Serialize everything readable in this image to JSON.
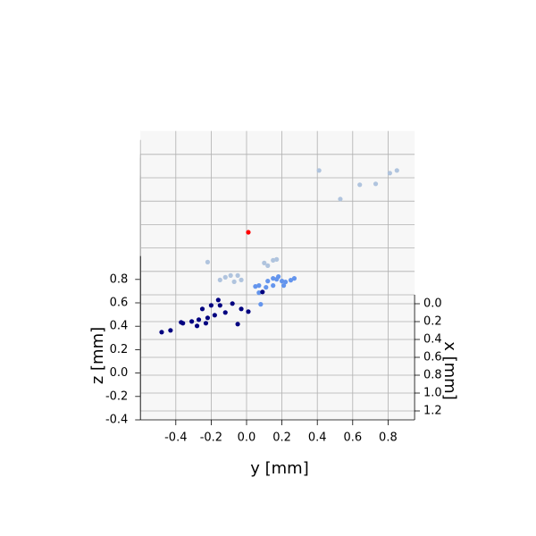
{
  "chart_data": {
    "type": "scatter3d",
    "x_label": "x [mm]",
    "y_label": "y [mm]",
    "z_label": "z [mm]",
    "xlim": [
      -0.1,
      1.3
    ],
    "ylim": [
      -0.6,
      0.95
    ],
    "zlim": [
      -0.4,
      1.0
    ],
    "xticks": [
      {
        "value": 0,
        "label": "0.0"
      },
      0.2,
      0.4,
      0.6,
      0.8,
      {
        "value": 1,
        "label": "1.0"
      },
      1.2
    ],
    "yticks": [
      -0.4,
      -0.2,
      {
        "value": 0,
        "label": "0.0"
      },
      0.2,
      0.4,
      0.6,
      0.8
    ],
    "zticks": [
      -0.4,
      -0.2,
      {
        "value": 0,
        "label": "0.0"
      },
      0.2,
      0.4,
      0.6,
      0.8
    ],
    "grid": true,
    "series": [
      {
        "color": "#b0c4de",
        "x": [
          0.08,
          0.4,
          0.24,
          0.23,
          0.11,
          0.08,
          0.32,
          0.52,
          0.47,
          0.54,
          0.52,
          0.33,
          0.36,
          0.3,
          0.29,
          0.49,
          0.47
        ],
        "y": [
          0.41,
          0.53,
          0.64,
          0.73,
          0.81,
          0.85,
          -0.22,
          -0.15,
          -0.09,
          -0.07,
          -0.03,
          0.1,
          0.12,
          0.15,
          0.17,
          -0.12,
          -0.05
        ],
        "z": [
          0.8,
          0.8,
          0.8,
          0.8,
          0.8,
          0.8,
          0.2,
          0.2,
          0.2,
          0.2,
          0.2,
          0.2,
          0.2,
          0.2,
          0.2,
          0.2,
          0.2
        ]
      },
      {
        "color": "#6495ed",
        "x": [
          0.33,
          0.32,
          0.27,
          0.24,
          0.25,
          0.27,
          0.28,
          0.26,
          0.24,
          0.32,
          0.32,
          0.22,
          0.53,
          0.4,
          0.34
        ],
        "y": [
          0.05,
          0.07,
          0.12,
          0.15,
          0.17,
          0.2,
          0.22,
          0.25,
          0.27,
          0.21,
          0.15,
          0.18,
          0.08,
          0.07,
          0.11
        ],
        "z": [
          0,
          0,
          0,
          0,
          0,
          0,
          0,
          0,
          0,
          0,
          0,
          0,
          0,
          0,
          0
        ]
      },
      {
        "color": "#000080",
        "x": [
          0.58,
          0.56,
          0.47,
          0.48,
          0.46,
          0.51,
          0.44,
          0.48,
          0.42,
          0.32,
          0.39,
          0.22,
          0.28,
          0.36,
          0.26,
          0.49,
          0.32,
          0.35,
          0.13,
          0.28
        ],
        "y": [
          -0.48,
          -0.43,
          -0.37,
          -0.36,
          -0.31,
          -0.28,
          -0.27,
          -0.23,
          -0.22,
          -0.25,
          -0.18,
          -0.16,
          -0.15,
          -0.12,
          -0.08,
          -0.05,
          -0.03,
          0.01,
          0.09,
          -0.2
        ],
        "z": [
          -0.2,
          -0.2,
          -0.2,
          -0.2,
          -0.2,
          -0.2,
          -0.2,
          -0.2,
          -0.2,
          -0.2,
          -0.2,
          -0.2,
          -0.2,
          -0.2,
          -0.2,
          -0.2,
          -0.2,
          -0.2,
          -0.2,
          -0.2
        ]
      },
      {
        "color": "red",
        "x": [
          0.51
        ],
        "y": [
          0.01
        ],
        "z": [
          0.6
        ]
      }
    ]
  }
}
